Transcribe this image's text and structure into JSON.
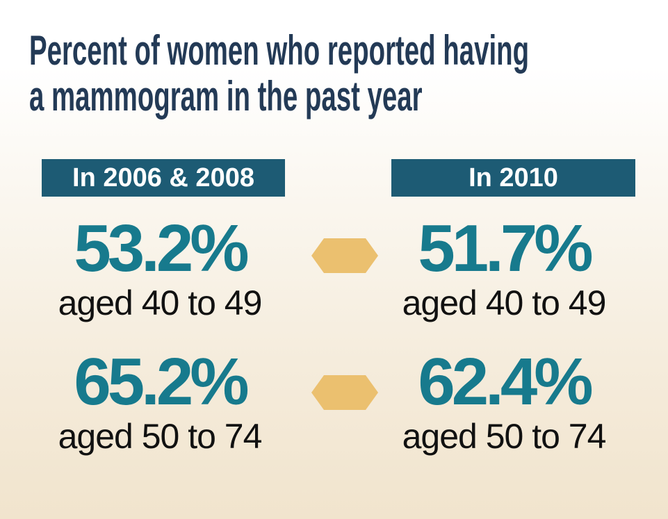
{
  "title": {
    "line1": "Percent of women who reported having",
    "line2": "a mammogram in the past year"
  },
  "columns": {
    "left_header": "In 2006 & 2008",
    "right_header": "In 2010"
  },
  "rows": [
    {
      "left_percent": "53.2%",
      "left_label": "aged 40 to 49",
      "right_percent": "51.7%",
      "right_label": "aged 40 to 49"
    },
    {
      "left_percent": "65.2%",
      "left_label": "aged 50 to 74",
      "right_percent": "62.4%",
      "right_label": "aged 50 to 74"
    }
  ],
  "colors": {
    "title": "#233a56",
    "header_bg": "#1d5b74",
    "percent": "#177a8d",
    "arrow": "#ebc06f",
    "label": "#111111"
  },
  "icons": {
    "connector": "hexagon-arrow-icon"
  }
}
